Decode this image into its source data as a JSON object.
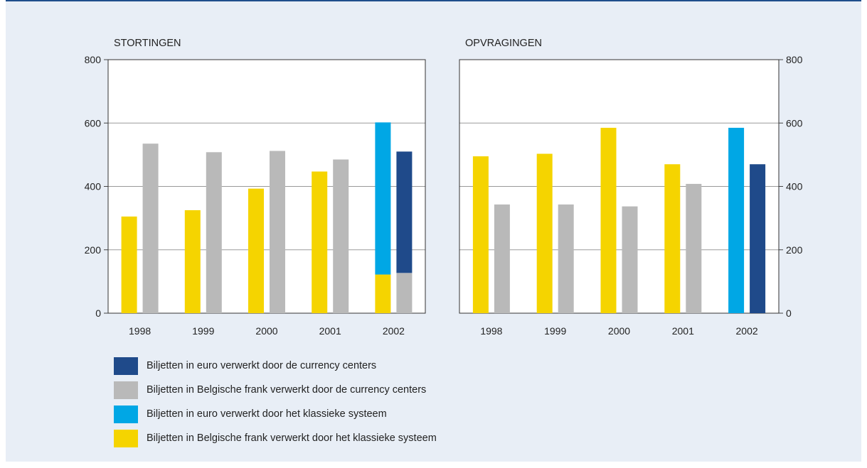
{
  "colors": {
    "figure_background": "#e8eef6",
    "plot_background": "#ffffff",
    "gridline": "#9a9a9a",
    "top_rule": "#1f4e8c"
  },
  "chart_data": [
    {
      "type": "bar",
      "stacked": true,
      "title": "STORTINGEN",
      "xlabel": "",
      "ylabel": "",
      "y_axis_side": "left",
      "ylim": [
        0,
        800
      ],
      "yticks": [
        "0",
        "200",
        "400",
        "600",
        "800"
      ],
      "grid": true,
      "categories": [
        "1998",
        "1999",
        "2000",
        "2001",
        "2002"
      ],
      "groups": [
        {
          "name": "klassieke systeem",
          "series": [
            {
              "name": "Biljetten in Belgische frank verwerkt door het klassieke systeem",
              "color": "#f5d400",
              "values": [
                305,
                325,
                393,
                447,
                122
              ]
            },
            {
              "name": "Biljetten in euro verwerkt door het klassieke systeem",
              "color": "#00a7e5",
              "values": [
                0,
                0,
                0,
                0,
                480
              ]
            }
          ]
        },
        {
          "name": "currency centers",
          "series": [
            {
              "name": "Biljetten in Belgische frank verwerkt door de currency centers",
              "color": "#b9b9b9",
              "values": [
                535,
                508,
                512,
                485,
                127
              ]
            },
            {
              "name": "Biljetten in euro verwerkt door de currency centers",
              "color": "#1f4a8a",
              "values": [
                0,
                0,
                0,
                0,
                383
              ]
            }
          ]
        }
      ]
    },
    {
      "type": "bar",
      "stacked": true,
      "title": "OPVRAGINGEN",
      "xlabel": "",
      "ylabel": "",
      "y_axis_side": "right",
      "ylim": [
        0,
        800
      ],
      "yticks": [
        "0",
        "200",
        "400",
        "600",
        "800"
      ],
      "grid": true,
      "categories": [
        "1998",
        "1999",
        "2000",
        "2001",
        "2002"
      ],
      "groups": [
        {
          "name": "klassieke systeem",
          "series": [
            {
              "name": "Biljetten in Belgische frank verwerkt door het klassieke systeem",
              "color": "#f5d400",
              "values": [
                495,
                503,
                585,
                470,
                0
              ]
            },
            {
              "name": "Biljetten in euro verwerkt door het klassieke systeem",
              "color": "#00a7e5",
              "values": [
                0,
                0,
                0,
                0,
                585
              ]
            }
          ]
        },
        {
          "name": "currency centers",
          "series": [
            {
              "name": "Biljetten in Belgische frank verwerkt door de currency centers",
              "color": "#b9b9b9",
              "values": [
                343,
                343,
                337,
                408,
                0
              ]
            },
            {
              "name": "Biljetten in euro verwerkt door de currency centers",
              "color": "#1f4a8a",
              "values": [
                0,
                0,
                0,
                0,
                470
              ]
            }
          ]
        }
      ]
    }
  ],
  "legend": {
    "position": "bottom-left",
    "items": [
      {
        "label": "Biljetten in euro verwerkt door de currency centers",
        "color": "#1f4a8a"
      },
      {
        "label": "Biljetten in Belgische frank verwerkt door de currency centers",
        "color": "#b9b9b9"
      },
      {
        "label": "Biljetten in euro verwerkt door het klassieke systeem",
        "color": "#00a7e5"
      },
      {
        "label": "Biljetten in Belgische frank verwerkt door het klassieke systeem",
        "color": "#f5d400"
      }
    ]
  }
}
